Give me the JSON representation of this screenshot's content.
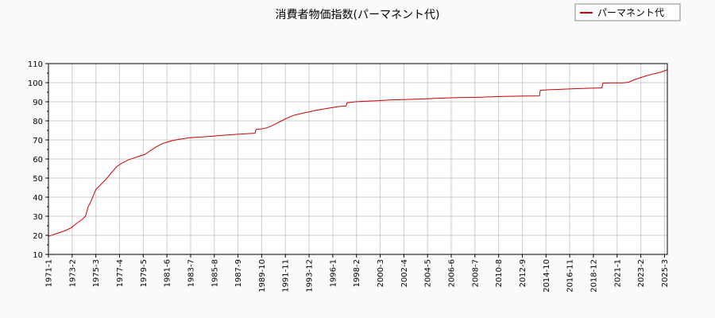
{
  "chart_data": {
    "type": "line",
    "title": "消費者物価指数(パーマネント代)",
    "xlabel": "",
    "ylabel": "",
    "ylim": [
      10,
      110
    ],
    "yticks": [
      10,
      20,
      30,
      40,
      50,
      60,
      70,
      80,
      90,
      100,
      110
    ],
    "xticks": [
      "1971-1",
      "1973-2",
      "1975-3",
      "1977-4",
      "1979-5",
      "1981-6",
      "1983-7",
      "1985-8",
      "1987-9",
      "1989-10",
      "1991-11",
      "1993-12",
      "1996-1",
      "1998-2",
      "2000-3",
      "2002-4",
      "2004-5",
      "2006-6",
      "2008-7",
      "2010-8",
      "2012-9",
      "2014-10",
      "2016-11",
      "2018-12",
      "2021-1",
      "2023-2",
      "2025-3"
    ],
    "grid": true,
    "legend_position": "top-right",
    "series": [
      {
        "name": "パーマネント代",
        "color": "#cc0000",
        "points": [
          [
            "1971-1",
            19.5
          ],
          [
            "1971-7",
            20.5
          ],
          [
            "1972-1",
            21.5
          ],
          [
            "1972-7",
            22.5
          ],
          [
            "1973-1",
            24.0
          ],
          [
            "1973-6",
            26.0
          ],
          [
            "1974-1",
            28.5
          ],
          [
            "1974-4",
            30.0
          ],
          [
            "1974-7",
            35.0
          ],
          [
            "1974-10",
            38.0
          ],
          [
            "1975-3",
            44.0
          ],
          [
            "1975-7",
            46.0
          ],
          [
            "1976-1",
            49.0
          ],
          [
            "1976-7",
            52.5
          ],
          [
            "1977-1",
            56.0
          ],
          [
            "1977-7",
            58.0
          ],
          [
            "1978-1",
            59.5
          ],
          [
            "1978-7",
            60.5
          ],
          [
            "1979-1",
            61.5
          ],
          [
            "1979-7",
            62.5
          ],
          [
            "1980-1",
            64.5
          ],
          [
            "1980-7",
            66.5
          ],
          [
            "1981-1",
            68.0
          ],
          [
            "1981-7",
            69.0
          ],
          [
            "1982-1",
            69.8
          ],
          [
            "1982-7",
            70.3
          ],
          [
            "1983-1",
            70.8
          ],
          [
            "1983-7",
            71.2
          ],
          [
            "1984-7",
            71.6
          ],
          [
            "1985-7",
            72.0
          ],
          [
            "1986-7",
            72.5
          ],
          [
            "1987-7",
            72.9
          ],
          [
            "1988-7",
            73.3
          ],
          [
            "1989-3",
            73.5
          ],
          [
            "1989-4",
            75.5
          ],
          [
            "1990-1",
            76.0
          ],
          [
            "1990-7",
            77.0
          ],
          [
            "1991-1",
            78.5
          ],
          [
            "1991-7",
            80.0
          ],
          [
            "1992-1",
            81.5
          ],
          [
            "1992-7",
            82.8
          ],
          [
            "1993-1",
            83.5
          ],
          [
            "1993-7",
            84.2
          ],
          [
            "1994-1",
            84.8
          ],
          [
            "1994-7",
            85.5
          ],
          [
            "1995-1",
            86.0
          ],
          [
            "1995-7",
            86.5
          ],
          [
            "1996-1",
            87.0
          ],
          [
            "1996-7",
            87.5
          ],
          [
            "1997-3",
            87.8
          ],
          [
            "1997-4",
            89.5
          ],
          [
            "1998-1",
            90.0
          ],
          [
            "1999-1",
            90.3
          ],
          [
            "2000-1",
            90.6
          ],
          [
            "2001-1",
            90.9
          ],
          [
            "2002-1",
            91.1
          ],
          [
            "2003-1",
            91.3
          ],
          [
            "2004-1",
            91.5
          ],
          [
            "2005-1",
            91.8
          ],
          [
            "2006-1",
            92.0
          ],
          [
            "2007-1",
            92.2
          ],
          [
            "2008-1",
            92.3
          ],
          [
            "2009-1",
            92.4
          ],
          [
            "2010-1",
            92.6
          ],
          [
            "2011-1",
            92.8
          ],
          [
            "2012-1",
            92.9
          ],
          [
            "2013-1",
            93.0
          ],
          [
            "2014-3",
            93.1
          ],
          [
            "2014-4",
            96.0
          ],
          [
            "2015-1",
            96.3
          ],
          [
            "2016-1",
            96.5
          ],
          [
            "2017-1",
            96.8
          ],
          [
            "2018-1",
            97.0
          ],
          [
            "2019-9",
            97.3
          ],
          [
            "2019-10",
            99.8
          ],
          [
            "2020-7",
            99.9
          ],
          [
            "2021-7",
            99.9
          ],
          [
            "2022-1",
            100.2
          ],
          [
            "2022-7",
            101.5
          ],
          [
            "2023-1",
            102.5
          ],
          [
            "2023-7",
            103.5
          ],
          [
            "2024-1",
            104.3
          ],
          [
            "2024-7",
            105.0
          ],
          [
            "2025-1",
            105.8
          ],
          [
            "2025-6",
            106.8
          ]
        ]
      }
    ]
  }
}
